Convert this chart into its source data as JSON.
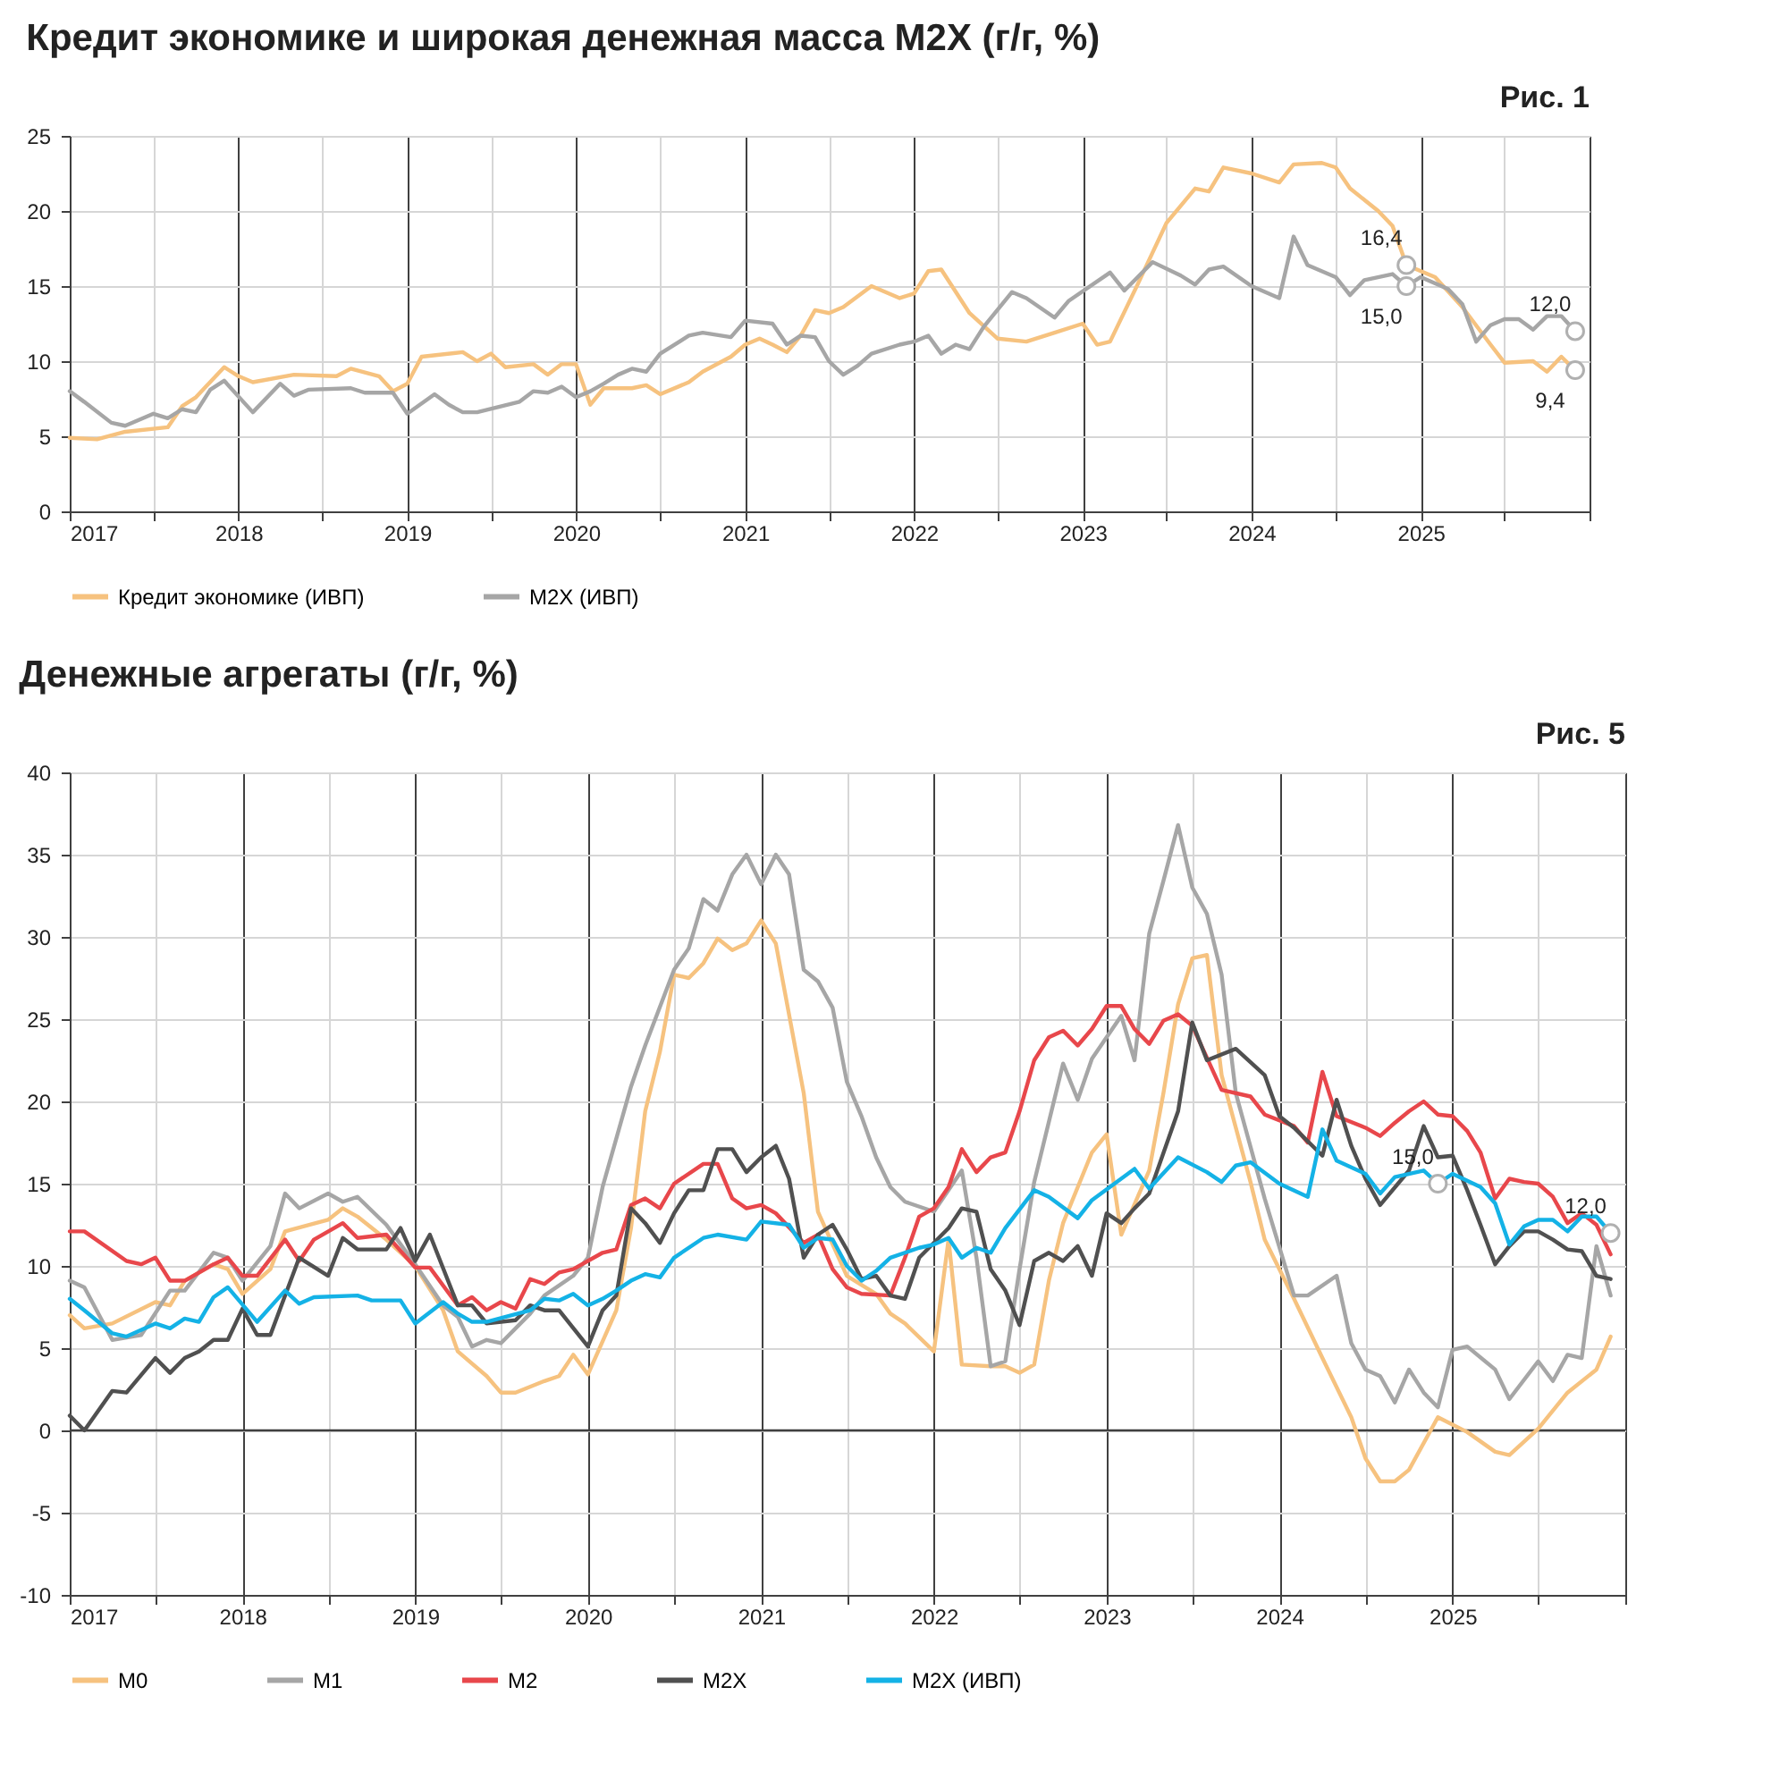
{
  "chart_data": [
    {
      "type": "line",
      "title": "Кредит экономике и широкая денежная масса M2X (г/г, %)",
      "xlim": [
        "2017-01",
        "2026-01"
      ],
      "xticks": [
        {
          "value": "2017-01",
          "label": "2017"
        },
        {
          "value": "2017-07",
          "label": null
        },
        {
          "value": "2018-01",
          "label": "2018"
        },
        {
          "value": "2018-07",
          "label": null
        },
        {
          "value": "2019-01",
          "label": "2019"
        },
        {
          "value": "2019-07",
          "label": null
        },
        {
          "value": "2020-01",
          "label": "2020"
        },
        {
          "value": "2020-07",
          "label": null
        },
        {
          "value": "2021-01",
          "label": "2021"
        },
        {
          "value": "2021-07",
          "label": null
        },
        {
          "value": "2022-01",
          "label": "2022"
        },
        {
          "value": "2022-07",
          "label": null
        },
        {
          "value": "2023-01",
          "label": "2023"
        },
        {
          "value": "2023-07",
          "label": null
        },
        {
          "value": "2024-01",
          "label": "2024"
        },
        {
          "value": "2024-07",
          "label": null
        },
        {
          "value": "2025-01",
          "label": "2025"
        },
        {
          "value": "2025-07",
          "label": null
        },
        {
          "value": "2026-01",
          "label": null
        }
      ],
      "ylim": [
        0,
        25
      ],
      "yticks": [
        0,
        5,
        10,
        15,
        20,
        25
      ],
      "grid": true,
      "legend": "bottom",
      "series": [
        {
          "name": "Кредит экономике (ИВП)",
          "color": "#f6c27f",
          "x": [
            "2017-01",
            "2017-03",
            "2017-05",
            "2017-08",
            "2017-09",
            "2017-10",
            "2017-12",
            "2018-01",
            "2018-02",
            "2018-05",
            "2018-08",
            "2018-09",
            "2018-11",
            "2018-12",
            "2019-01",
            "2019-02",
            "2019-05",
            "2019-06",
            "2019-07",
            "2019-08",
            "2019-10",
            "2019-11",
            "2019-12",
            "2020-01",
            "2020-02",
            "2020-03",
            "2020-05",
            "2020-06",
            "2020-07",
            "2020-09",
            "2020-10",
            "2020-12",
            "2021-01",
            "2021-02",
            "2021-03",
            "2021-04",
            "2021-05",
            "2021-06",
            "2021-07",
            "2021-08",
            "2021-10",
            "2021-12",
            "2022-01",
            "2022-02",
            "2022-03",
            "2022-05",
            "2022-07",
            "2022-09",
            "2022-11",
            "2023-01",
            "2023-02",
            "2023-03",
            "2023-05",
            "2023-07",
            "2023-09",
            "2023-10",
            "2023-11",
            "2024-01",
            "2024-03",
            "2024-04",
            "2024-06",
            "2024-07",
            "2024-08",
            "2024-10",
            "2024-11",
            "2024-12",
            "2025-02",
            "2025-04",
            "2025-06",
            "2025-07",
            "2025-09",
            "2025-10",
            "2025-11",
            "2025-12"
          ],
          "values": [
            4.9,
            4.8,
            5.3,
            5.6,
            7.0,
            7.6,
            9.6,
            9.0,
            8.6,
            9.1,
            9.0,
            9.5,
            9.0,
            8.0,
            8.5,
            10.3,
            10.6,
            10.0,
            10.5,
            9.6,
            9.8,
            9.1,
            9.8,
            9.8,
            7.1,
            8.2,
            8.2,
            8.4,
            7.8,
            8.6,
            9.3,
            10.3,
            11.1,
            11.5,
            11.1,
            10.6,
            11.7,
            13.4,
            13.2,
            13.6,
            15.0,
            14.2,
            14.5,
            16.0,
            16.1,
            13.2,
            11.5,
            11.3,
            11.9,
            12.5,
            11.1,
            11.3,
            15.2,
            19.2,
            21.5,
            21.3,
            22.9,
            22.5,
            21.9,
            23.1,
            23.2,
            22.9,
            21.5,
            20.0,
            19.0,
            16.4,
            15.6,
            13.6,
            11.1,
            9.9,
            10.0,
            9.3,
            10.3,
            9.4
          ]
        },
        {
          "name": "M2X (ИВП)",
          "color": "#a6a6a6",
          "x": [
            "2017-01",
            "2017-02",
            "2017-04",
            "2017-05",
            "2017-07",
            "2017-08",
            "2017-09",
            "2017-10",
            "2017-11",
            "2017-12",
            "2018-02",
            "2018-04",
            "2018-05",
            "2018-06",
            "2018-09",
            "2018-10",
            "2018-12",
            "2019-01",
            "2019-03",
            "2019-04",
            "2019-05",
            "2019-06",
            "2019-09",
            "2019-10",
            "2019-11",
            "2019-12",
            "2020-01",
            "2020-02",
            "2020-03",
            "2020-04",
            "2020-05",
            "2020-06",
            "2020-07",
            "2020-09",
            "2020-10",
            "2020-12",
            "2021-01",
            "2021-03",
            "2021-04",
            "2021-05",
            "2021-06",
            "2021-07",
            "2021-08",
            "2021-09",
            "2021-10",
            "2021-12",
            "2022-01",
            "2022-02",
            "2022-03",
            "2022-04",
            "2022-05",
            "2022-06",
            "2022-08",
            "2022-09",
            "2022-11",
            "2022-12",
            "2023-03",
            "2023-04",
            "2023-06",
            "2023-08",
            "2023-09",
            "2023-10",
            "2023-11",
            "2024-01",
            "2024-03",
            "2024-04",
            "2024-05",
            "2024-07",
            "2024-08",
            "2024-09",
            "2024-11",
            "2024-12",
            "2025-01",
            "2025-03",
            "2025-04",
            "2025-05",
            "2025-06",
            "2025-07",
            "2025-08",
            "2025-09",
            "2025-10",
            "2025-11",
            "2025-12"
          ],
          "values": [
            8.0,
            7.3,
            5.9,
            5.7,
            6.5,
            6.2,
            6.8,
            6.6,
            8.1,
            8.7,
            6.6,
            8.5,
            7.7,
            8.1,
            8.2,
            7.9,
            7.9,
            6.5,
            7.8,
            7.1,
            6.6,
            6.6,
            7.3,
            8.0,
            7.9,
            8.3,
            7.6,
            8.0,
            8.5,
            9.1,
            9.5,
            9.3,
            10.5,
            11.7,
            11.9,
            11.6,
            12.7,
            12.5,
            11.1,
            11.7,
            11.6,
            10.0,
            9.1,
            9.7,
            10.5,
            11.1,
            11.3,
            11.7,
            10.5,
            11.1,
            10.8,
            12.3,
            14.6,
            14.2,
            12.9,
            14.0,
            15.9,
            14.7,
            16.6,
            15.7,
            15.1,
            16.1,
            16.3,
            15.0,
            14.2,
            18.3,
            16.4,
            15.6,
            14.4,
            15.4,
            15.8,
            15.0,
            15.6,
            14.8,
            13.8,
            11.3,
            12.4,
            12.8,
            12.8,
            12.1,
            13.0,
            13.0,
            12.0
          ]
        }
      ],
      "annotations": [
        "Рис. 1",
        {
          "text": "16,4",
          "x": "2024-12",
          "y": 16.4
        },
        {
          "text": "15,0",
          "x": "2024-12",
          "y": 15.0
        },
        {
          "text": "12,0",
          "x": "2025-12",
          "y": 12.0
        },
        {
          "text": "9,4",
          "x": "2025-12",
          "y": 9.4
        }
      ]
    },
    {
      "type": "line",
      "title": "Денежные агрегаты (г/г, %)",
      "xlim": [
        "2017-01",
        "2026-01"
      ],
      "xticks": [
        {
          "value": "2017-01",
          "label": "2017"
        },
        {
          "value": "2017-07",
          "label": null
        },
        {
          "value": "2018-01",
          "label": "2018"
        },
        {
          "value": "2018-07",
          "label": null
        },
        {
          "value": "2019-01",
          "label": "2019"
        },
        {
          "value": "2019-07",
          "label": null
        },
        {
          "value": "2020-01",
          "label": "2020"
        },
        {
          "value": "2020-07",
          "label": null
        },
        {
          "value": "2021-01",
          "label": "2021"
        },
        {
          "value": "2021-07",
          "label": null
        },
        {
          "value": "2022-01",
          "label": "2022"
        },
        {
          "value": "2022-07",
          "label": null
        },
        {
          "value": "2023-01",
          "label": "2023"
        },
        {
          "value": "2023-07",
          "label": null
        },
        {
          "value": "2024-01",
          "label": "2024"
        },
        {
          "value": "2024-07",
          "label": null
        },
        {
          "value": "2025-01",
          "label": "2025"
        },
        {
          "value": "2025-07",
          "label": null
        },
        {
          "value": "2026-01",
          "label": null
        }
      ],
      "ylim": [
        -10,
        40
      ],
      "yticks": [
        -10,
        -5,
        0,
        5,
        10,
        15,
        20,
        25,
        30,
        35,
        40
      ],
      "grid": true,
      "legend": "bottom",
      "ref_lines": [
        {
          "axis": "y",
          "value": 0,
          "color": "#404040"
        }
      ],
      "series": [
        {
          "name": "M0",
          "color": "#f6c27f",
          "x": [
            "2017-01",
            "2017-02",
            "2017-04",
            "2017-07",
            "2017-08",
            "2017-09",
            "2017-11",
            "2017-12",
            "2018-01",
            "2018-03",
            "2018-04",
            "2018-07",
            "2018-08",
            "2018-09",
            "2018-11",
            "2019-01",
            "2019-03",
            "2019-04",
            "2019-06",
            "2019-07",
            "2019-08",
            "2019-10",
            "2019-11",
            "2019-12",
            "2020-01",
            "2020-03",
            "2020-04",
            "2020-05",
            "2020-06",
            "2020-07",
            "2020-08",
            "2020-09",
            "2020-10",
            "2020-11",
            "2020-12",
            "2021-01",
            "2021-02",
            "2021-04",
            "2021-05",
            "2021-07",
            "2021-09",
            "2021-10",
            "2021-11",
            "2022-01",
            "2022-02",
            "2022-03",
            "2022-05",
            "2022-06",
            "2022-07",
            "2022-08",
            "2022-09",
            "2022-10",
            "2022-12",
            "2023-01",
            "2023-02",
            "2023-04",
            "2023-05",
            "2023-06",
            "2023-07",
            "2023-08",
            "2023-09",
            "2023-11",
            "2023-12",
            "2024-02",
            "2024-04",
            "2024-06",
            "2024-07",
            "2024-08",
            "2024-09",
            "2024-10",
            "2024-12",
            "2025-02",
            "2025-04",
            "2025-05",
            "2025-07",
            "2025-09",
            "2025-11",
            "2025-12"
          ],
          "values": [
            7.0,
            6.2,
            6.5,
            7.8,
            7.6,
            9.1,
            10.1,
            9.8,
            8.3,
            9.8,
            12.1,
            12.8,
            13.5,
            13.0,
            11.6,
            10.0,
            7.3,
            4.8,
            3.3,
            2.3,
            2.3,
            3.0,
            3.3,
            4.6,
            3.4,
            7.3,
            12.3,
            19.4,
            23.0,
            27.7,
            27.5,
            28.4,
            29.9,
            29.2,
            29.6,
            31.0,
            29.6,
            20.5,
            13.3,
            9.4,
            8.3,
            7.1,
            6.5,
            4.8,
            11.6,
            4.0,
            3.9,
            3.9,
            3.5,
            4.0,
            9.1,
            12.6,
            16.9,
            18.0,
            11.9,
            15.8,
            20.5,
            25.9,
            28.7,
            28.9,
            21.6,
            15.1,
            11.6,
            8.0,
            4.4,
            0.8,
            -1.7,
            -3.1,
            -3.1,
            -2.4,
            0.8,
            -0.1,
            -1.3,
            -1.5,
            0.1,
            2.3,
            3.7,
            5.7
          ]
        },
        {
          "name": "M1",
          "color": "#a6a6a6",
          "x": [
            "2017-01",
            "2017-02",
            "2017-04",
            "2017-06",
            "2017-08",
            "2017-09",
            "2017-11",
            "2017-12",
            "2018-01",
            "2018-03",
            "2018-04",
            "2018-05",
            "2018-07",
            "2018-08",
            "2018-09",
            "2018-11",
            "2019-01",
            "2019-03",
            "2019-04",
            "2019-05",
            "2019-06",
            "2019-07",
            "2019-09",
            "2019-10",
            "2019-12",
            "2020-01",
            "2020-02",
            "2020-04",
            "2020-05",
            "2020-07",
            "2020-08",
            "2020-09",
            "2020-10",
            "2020-11",
            "2020-12",
            "2021-01",
            "2021-02",
            "2021-03",
            "2021-04",
            "2021-05",
            "2021-06",
            "2021-07",
            "2021-08",
            "2021-09",
            "2021-10",
            "2021-11",
            "2022-01",
            "2022-03",
            "2022-04",
            "2022-05",
            "2022-06",
            "2022-07",
            "2022-08",
            "2022-10",
            "2022-11",
            "2022-12",
            "2023-02",
            "2023-03",
            "2023-04",
            "2023-05",
            "2023-06",
            "2023-07",
            "2023-08",
            "2023-09",
            "2023-10",
            "2023-12",
            "2024-02",
            "2024-03",
            "2024-05",
            "2024-06",
            "2024-07",
            "2024-08",
            "2024-09",
            "2024-10",
            "2024-11",
            "2024-12",
            "2025-01",
            "2025-02",
            "2025-04",
            "2025-05",
            "2025-07",
            "2025-08",
            "2025-09",
            "2025-10",
            "2025-11",
            "2025-12"
          ],
          "values": [
            9.1,
            8.7,
            5.5,
            5.8,
            8.5,
            8.5,
            10.8,
            10.5,
            9.1,
            11.2,
            14.4,
            13.5,
            14.4,
            13.9,
            14.2,
            12.5,
            10.1,
            7.6,
            6.9,
            5.1,
            5.5,
            5.3,
            7.1,
            8.2,
            9.4,
            10.5,
            14.8,
            20.9,
            23.4,
            28.0,
            29.3,
            32.3,
            31.6,
            33.8,
            35.0,
            33.2,
            35.0,
            33.8,
            28.0,
            27.3,
            25.7,
            21.2,
            19.1,
            16.6,
            14.8,
            13.9,
            13.3,
            15.8,
            10.5,
            3.9,
            4.2,
            9.8,
            15.1,
            22.3,
            20.1,
            22.6,
            25.2,
            22.5,
            30.2,
            33.4,
            36.8,
            33.0,
            31.4,
            27.7,
            20.5,
            14.1,
            8.2,
            8.2,
            9.4,
            5.3,
            3.7,
            3.3,
            1.7,
            3.7,
            2.3,
            1.4,
            4.9,
            5.1,
            3.7,
            1.9,
            4.2,
            3.0,
            4.6,
            4.4,
            11.2,
            8.2
          ]
        },
        {
          "name": "M2",
          "color": "#e8474b",
          "x": [
            "2017-01",
            "2017-02",
            "2017-05",
            "2017-06",
            "2017-07",
            "2017-08",
            "2017-09",
            "2017-11",
            "2017-12",
            "2018-01",
            "2018-02",
            "2018-04",
            "2018-05",
            "2018-06",
            "2018-08",
            "2018-09",
            "2018-11",
            "2019-01",
            "2019-02",
            "2019-04",
            "2019-05",
            "2019-06",
            "2019-07",
            "2019-08",
            "2019-09",
            "2019-10",
            "2019-11",
            "2019-12",
            "2020-02",
            "2020-03",
            "2020-04",
            "2020-05",
            "2020-06",
            "2020-07",
            "2020-09",
            "2020-10",
            "2020-11",
            "2020-12",
            "2021-01",
            "2021-02",
            "2021-04",
            "2021-05",
            "2021-06",
            "2021-07",
            "2021-08",
            "2021-10",
            "2021-11",
            "2021-12",
            "2022-01",
            "2022-02",
            "2022-03",
            "2022-04",
            "2022-05",
            "2022-06",
            "2022-07",
            "2022-08",
            "2022-09",
            "2022-10",
            "2022-11",
            "2022-12",
            "2023-01",
            "2023-02",
            "2023-03",
            "2023-04",
            "2023-05",
            "2023-06",
            "2023-07",
            "2023-09",
            "2023-11",
            "2023-12",
            "2024-02",
            "2024-03",
            "2024-04",
            "2024-05",
            "2024-07",
            "2024-08",
            "2024-09",
            "2024-10",
            "2024-11",
            "2024-12",
            "2025-01",
            "2025-02",
            "2025-03",
            "2025-04",
            "2025-05",
            "2025-06",
            "2025-07",
            "2025-08",
            "2025-09",
            "2025-10",
            "2025-11",
            "2025-12"
          ],
          "values": [
            12.1,
            12.1,
            10.3,
            10.1,
            10.5,
            9.1,
            9.1,
            10.1,
            10.5,
            9.4,
            9.4,
            11.6,
            10.3,
            11.6,
            12.6,
            11.7,
            11.9,
            9.9,
            9.9,
            7.6,
            8.1,
            7.3,
            7.8,
            7.4,
            9.2,
            8.9,
            9.6,
            9.8,
            10.8,
            11.0,
            13.7,
            14.1,
            13.5,
            15.0,
            16.2,
            16.2,
            14.1,
            13.5,
            13.7,
            13.2,
            11.4,
            11.9,
            9.8,
            8.7,
            8.3,
            8.2,
            10.5,
            13.0,
            13.5,
            14.8,
            17.1,
            15.7,
            16.6,
            16.9,
            19.4,
            22.5,
            23.9,
            24.3,
            23.4,
            24.4,
            25.8,
            25.8,
            24.4,
            23.5,
            24.9,
            25.3,
            24.6,
            20.7,
            20.3,
            19.2,
            18.5,
            17.5,
            21.8,
            19.1,
            18.4,
            17.9,
            18.7,
            19.4,
            20.0,
            19.2,
            19.1,
            18.2,
            16.9,
            14.1,
            15.3,
            15.1,
            15.0,
            14.2,
            12.6,
            13.2,
            12.5,
            10.7
          ]
        },
        {
          "name": "M2X",
          "color": "#505050",
          "x": [
            "2017-01",
            "2017-02",
            "2017-04",
            "2017-05",
            "2017-07",
            "2017-08",
            "2017-09",
            "2017-10",
            "2017-11",
            "2017-12",
            "2018-01",
            "2018-02",
            "2018-03",
            "2018-05",
            "2018-07",
            "2018-08",
            "2018-09",
            "2018-11",
            "2018-12",
            "2019-01",
            "2019-02",
            "2019-04",
            "2019-05",
            "2019-06",
            "2019-08",
            "2019-09",
            "2019-10",
            "2019-11",
            "2020-01",
            "2020-02",
            "2020-03",
            "2020-04",
            "2020-05",
            "2020-06",
            "2020-07",
            "2020-08",
            "2020-09",
            "2020-10",
            "2020-11",
            "2020-12",
            "2021-01",
            "2021-02",
            "2021-03",
            "2021-04",
            "2021-05",
            "2021-06",
            "2021-07",
            "2021-08",
            "2021-09",
            "2021-10",
            "2021-11",
            "2021-12",
            "2022-02",
            "2022-03",
            "2022-04",
            "2022-05",
            "2022-06",
            "2022-07",
            "2022-08",
            "2022-09",
            "2022-10",
            "2022-11",
            "2022-12",
            "2023-01",
            "2023-02",
            "2023-03",
            "2023-04",
            "2023-06",
            "2023-07",
            "2023-08",
            "2023-10",
            "2023-12",
            "2024-01",
            "2024-02",
            "2024-04",
            "2024-05",
            "2024-06",
            "2024-07",
            "2024-08",
            "2024-10",
            "2024-11",
            "2024-12",
            "2025-01",
            "2025-02",
            "2025-03",
            "2025-04",
            "2025-05",
            "2025-06",
            "2025-07",
            "2025-08",
            "2025-09",
            "2025-10",
            "2025-11",
            "2025-12"
          ],
          "values": [
            0.9,
            0.0,
            2.4,
            2.3,
            4.4,
            3.5,
            4.4,
            4.8,
            5.5,
            5.5,
            7.4,
            5.8,
            5.8,
            10.5,
            9.4,
            11.7,
            11.0,
            11.0,
            12.3,
            10.3,
            11.9,
            7.6,
            7.6,
            6.5,
            6.7,
            7.6,
            7.3,
            7.3,
            5.1,
            7.3,
            8.2,
            13.5,
            12.6,
            11.4,
            13.2,
            14.6,
            14.6,
            17.1,
            17.1,
            15.7,
            16.6,
            17.3,
            15.3,
            10.5,
            11.9,
            12.5,
            11.0,
            9.2,
            9.4,
            8.2,
            8.0,
            10.5,
            12.3,
            13.5,
            13.3,
            9.8,
            8.5,
            6.4,
            10.3,
            10.8,
            10.3,
            11.2,
            9.4,
            13.2,
            12.6,
            13.5,
            14.4,
            19.4,
            24.8,
            22.5,
            23.2,
            21.6,
            19.1,
            18.4,
            16.7,
            20.1,
            17.3,
            15.3,
            13.7,
            15.8,
            18.5,
            16.6,
            16.7,
            14.6,
            12.5,
            10.1,
            11.2,
            12.1,
            12.1,
            11.6,
            11.0,
            10.9,
            9.4,
            9.2
          ]
        },
        {
          "name": "M2X (ИВП)",
          "color": "#14b2e6",
          "x": [
            "2017-01",
            "2017-02",
            "2017-04",
            "2017-05",
            "2017-07",
            "2017-08",
            "2017-09",
            "2017-10",
            "2017-11",
            "2017-12",
            "2018-02",
            "2018-04",
            "2018-05",
            "2018-06",
            "2018-09",
            "2018-10",
            "2018-12",
            "2019-01",
            "2019-03",
            "2019-04",
            "2019-05",
            "2019-06",
            "2019-09",
            "2019-10",
            "2019-11",
            "2019-12",
            "2020-01",
            "2020-02",
            "2020-03",
            "2020-04",
            "2020-05",
            "2020-06",
            "2020-07",
            "2020-09",
            "2020-10",
            "2020-12",
            "2021-01",
            "2021-03",
            "2021-04",
            "2021-05",
            "2021-06",
            "2021-07",
            "2021-08",
            "2021-09",
            "2021-10",
            "2021-12",
            "2022-01",
            "2022-02",
            "2022-03",
            "2022-04",
            "2022-05",
            "2022-06",
            "2022-08",
            "2022-09",
            "2022-11",
            "2022-12",
            "2023-03",
            "2023-04",
            "2023-06",
            "2023-08",
            "2023-09",
            "2023-10",
            "2023-11",
            "2024-01",
            "2024-03",
            "2024-04",
            "2024-05",
            "2024-07",
            "2024-08",
            "2024-09",
            "2024-11",
            "2024-12",
            "2025-01",
            "2025-03",
            "2025-04",
            "2025-05",
            "2025-06",
            "2025-07",
            "2025-08",
            "2025-09",
            "2025-10",
            "2025-11",
            "2025-12"
          ],
          "values": [
            8.0,
            7.3,
            5.9,
            5.7,
            6.5,
            6.2,
            6.8,
            6.6,
            8.1,
            8.7,
            6.6,
            8.5,
            7.7,
            8.1,
            8.2,
            7.9,
            7.9,
            6.5,
            7.8,
            7.1,
            6.6,
            6.6,
            7.3,
            8.0,
            7.9,
            8.3,
            7.6,
            8.0,
            8.5,
            9.1,
            9.5,
            9.3,
            10.5,
            11.7,
            11.9,
            11.6,
            12.7,
            12.5,
            11.1,
            11.7,
            11.6,
            10.0,
            9.1,
            9.7,
            10.5,
            11.1,
            11.3,
            11.7,
            10.5,
            11.1,
            10.8,
            12.3,
            14.6,
            14.2,
            12.9,
            14.0,
            15.9,
            14.7,
            16.6,
            15.7,
            15.1,
            16.1,
            16.3,
            15.0,
            14.2,
            18.3,
            16.4,
            15.6,
            14.4,
            15.4,
            15.8,
            15.0,
            15.6,
            14.8,
            13.8,
            11.3,
            12.4,
            12.8,
            12.8,
            12.1,
            13.0,
            13.0,
            12.0
          ]
        }
      ],
      "annotations": [
        "Рис. 5",
        {
          "text": "15,0",
          "x": "2024-12",
          "y": 15.0
        },
        {
          "text": "12,0",
          "x": "2025-12",
          "y": 12.0
        }
      ]
    }
  ]
}
